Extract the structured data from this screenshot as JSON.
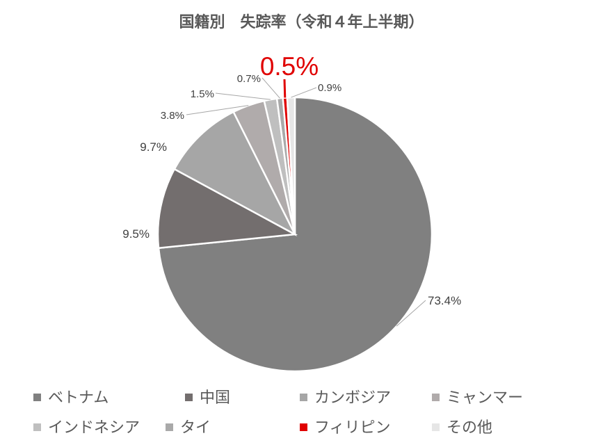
{
  "chart_data": {
    "type": "pie",
    "title": "国籍別　失踪率（令和４年上半期）",
    "categories": [
      "ベトナム",
      "中国",
      "カンボジア",
      "ミャンマー",
      "インドネシア",
      "タイ",
      "フィリピン",
      "その他"
    ],
    "values": [
      73.4,
      9.5,
      9.7,
      3.8,
      1.5,
      0.7,
      0.5,
      0.9
    ],
    "data_labels": [
      "73.4%",
      "9.5%",
      "9.7%",
      "3.8%",
      "1.5%",
      "0.7%",
      "0.5%",
      "0.9%"
    ],
    "colors": [
      "#808080",
      "#736e6e",
      "#a6a6a6",
      "#b0abab",
      "#bfbfbf",
      "#a9a9a9",
      "#e00000",
      "#e6e6e6"
    ],
    "highlight": {
      "category": "フィリピン",
      "color": "#e00000"
    },
    "legend_placement": "bottom",
    "start_angle_deg": 0,
    "direction": "clockwise"
  }
}
